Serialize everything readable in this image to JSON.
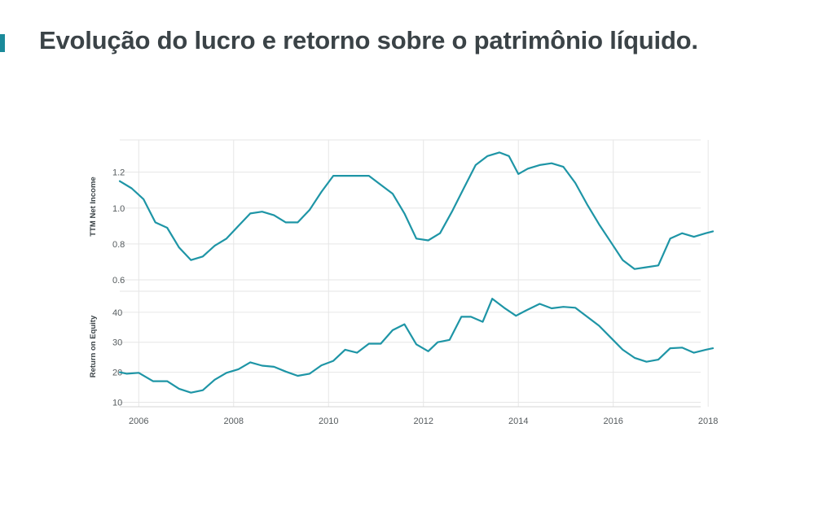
{
  "title": "Evolução do lucro e retorno sobre o patrimônio líquido.",
  "colors": {
    "accent": "#1a8a9a",
    "line": "#1e95a6",
    "grid": "#e6e6e6",
    "text": "#3b4347"
  },
  "chart_data": [
    {
      "type": "line",
      "ylabel": "TTM Net Income",
      "ylim": [
        0.55,
        1.38
      ],
      "yticks": [
        0.6,
        0.8,
        1.0,
        1.2
      ],
      "ytick_labels": [
        "0.6",
        "0.8",
        "1.0",
        "1.2"
      ],
      "grid": true,
      "x": [
        2005.6,
        2005.85,
        2006.1,
        2006.35,
        2006.6,
        2006.85,
        2007.1,
        2007.35,
        2007.6,
        2007.85,
        2008.1,
        2008.35,
        2008.6,
        2008.85,
        2009.1,
        2009.35,
        2009.6,
        2009.85,
        2010.1,
        2010.35,
        2010.6,
        2010.85,
        2011.1,
        2011.35,
        2011.6,
        2011.85,
        2012.1,
        2012.35,
        2012.6,
        2012.85,
        2013.1,
        2013.35,
        2013.6,
        2013.8,
        2014.0,
        2014.2,
        2014.45,
        2014.7,
        2014.95,
        2015.2,
        2015.45,
        2015.7,
        2015.95,
        2016.2,
        2016.45,
        2016.7,
        2016.95,
        2017.2,
        2017.45,
        2017.7,
        2017.95,
        2018.1
      ],
      "y": [
        1.15,
        1.11,
        1.05,
        0.92,
        0.89,
        0.78,
        0.71,
        0.73,
        0.79,
        0.83,
        0.9,
        0.97,
        0.98,
        0.96,
        0.92,
        0.92,
        0.99,
        1.09,
        1.18,
        1.18,
        1.18,
        1.18,
        1.13,
        1.08,
        0.97,
        0.83,
        0.82,
        0.86,
        0.98,
        1.11,
        1.24,
        1.29,
        1.31,
        1.29,
        1.19,
        1.22,
        1.24,
        1.25,
        1.23,
        1.14,
        1.02,
        0.91,
        0.81,
        0.71,
        0.66,
        0.67,
        0.68,
        0.83,
        0.86,
        0.84,
        0.86,
        0.87
      ]
    },
    {
      "type": "line",
      "ylabel": "Return on Equity",
      "ylim": [
        8.5,
        47
      ],
      "yticks": [
        10,
        20,
        30,
        40
      ],
      "ytick_labels": [
        "10",
        "20",
        "30",
        "40"
      ],
      "grid": true,
      "x": [
        2005.6,
        2005.75,
        2006.0,
        2006.3,
        2006.6,
        2006.85,
        2007.1,
        2007.35,
        2007.6,
        2007.85,
        2008.1,
        2008.35,
        2008.6,
        2008.85,
        2009.1,
        2009.35,
        2009.6,
        2009.85,
        2010.1,
        2010.35,
        2010.6,
        2010.85,
        2011.1,
        2011.35,
        2011.6,
        2011.85,
        2012.1,
        2012.3,
        2012.55,
        2012.8,
        2013.0,
        2013.25,
        2013.45,
        2013.7,
        2013.95,
        2014.15,
        2014.45,
        2014.7,
        2014.95,
        2015.2,
        2015.45,
        2015.7,
        2015.95,
        2016.2,
        2016.45,
        2016.7,
        2016.95,
        2017.2,
        2017.45,
        2017.7,
        2017.95,
        2018.1
      ],
      "y": [
        20,
        19.5,
        19.8,
        17,
        17,
        14.5,
        13.2,
        14,
        17.5,
        19.8,
        21,
        23.3,
        22.2,
        21.8,
        20.2,
        18.8,
        19.5,
        22.3,
        23.8,
        27.5,
        26.5,
        29.5,
        29.5,
        34,
        36,
        29.3,
        27,
        30,
        30.8,
        38.5,
        38.5,
        36.8,
        44.5,
        41.5,
        38.8,
        40.5,
        42.8,
        41.3,
        41.8,
        41.5,
        38.5,
        35.5,
        31.5,
        27.5,
        24.8,
        23.5,
        24.2,
        28,
        28.2,
        26.5,
        27.5,
        28
      ]
    }
  ],
  "x_axis": {
    "range": [
      2005.6,
      2018.1
    ],
    "ticks": [
      2006,
      2008,
      2010,
      2012,
      2014,
      2016,
      2018
    ],
    "tick_labels": [
      "2006",
      "2008",
      "2010",
      "2012",
      "2014",
      "2016",
      "2018"
    ]
  }
}
